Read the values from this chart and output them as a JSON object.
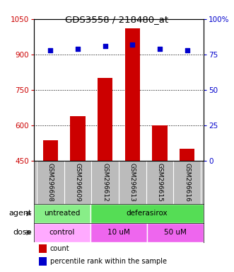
{
  "title": "GDS3558 / 218480_at",
  "categories": [
    "GSM296608",
    "GSM296609",
    "GSM296612",
    "GSM296613",
    "GSM296615",
    "GSM296616"
  ],
  "bar_values": [
    535,
    638,
    800,
    1010,
    600,
    500
  ],
  "dot_values": [
    78,
    79,
    81,
    82,
    79,
    78
  ],
  "bar_color": "#cc0000",
  "dot_color": "#0000cc",
  "ylim_left": [
    450,
    1050
  ],
  "ylim_right": [
    0,
    100
  ],
  "yticks_left": [
    450,
    600,
    750,
    900,
    1050
  ],
  "yticks_right": [
    0,
    25,
    50,
    75,
    100
  ],
  "left_axis_color": "#cc0000",
  "right_axis_color": "#0000cc",
  "xlabel_area_color": "#bbbbbb",
  "agent_untreated_color": "#88ee88",
  "agent_deferasirox_color": "#55dd55",
  "dose_control_color": "#ffaaff",
  "dose_uM_color": "#ee66ee",
  "agent_label": "agent",
  "dose_label": "dose",
  "legend_count_color": "#cc0000",
  "legend_dot_color": "#0000cc",
  "legend_count_label": "count",
  "legend_dot_label": "percentile rank within the sample"
}
